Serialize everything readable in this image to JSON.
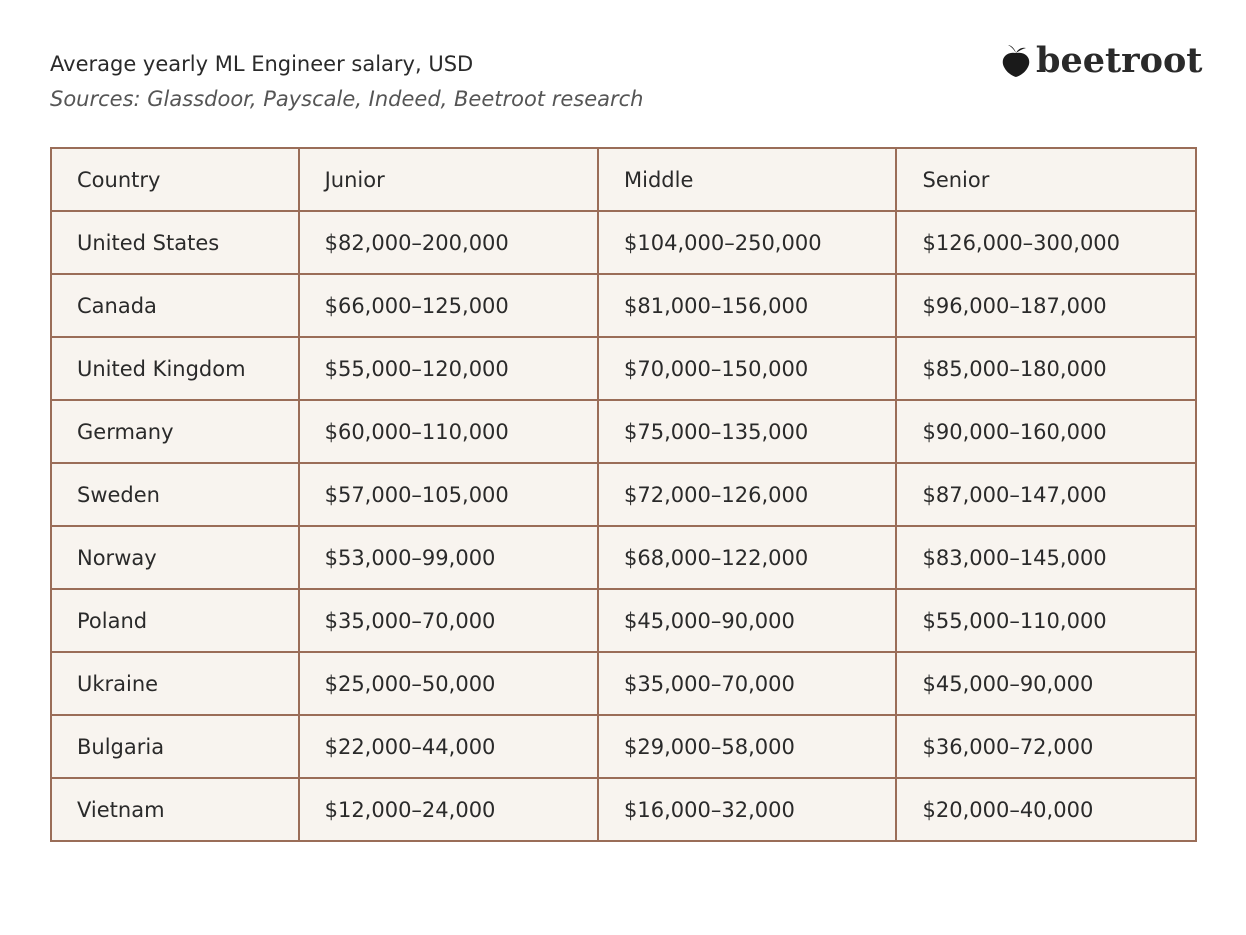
{
  "header": {
    "title": "Average yearly ML Engineer salary, USD",
    "subtitle": "Sources: Glassdoor, Payscale, Indeed, Beetroot research",
    "logo": "beetroot"
  },
  "table": {
    "columns": [
      "Country",
      "Junior",
      "Middle",
      "Senior"
    ],
    "rows": [
      [
        "United States",
        "$82,000–200,000",
        "$104,000–250,000",
        "$126,000–300,000"
      ],
      [
        "Canada",
        "$66,000–125,000",
        "$81,000–156,000",
        "$96,000–187,000"
      ],
      [
        "United Kingdom",
        "$55,000–120,000",
        "$70,000–150,000",
        "$85,000–180,000"
      ],
      [
        "Germany",
        "$60,000–110,000",
        "$75,000–135,000",
        "$90,000–160,000"
      ],
      [
        "Sweden",
        "$57,000–105,000",
        "$72,000–126,000",
        "$87,000–147,000"
      ],
      [
        "Norway",
        "$53,000–99,000",
        "$68,000–122,000",
        "$83,000–145,000"
      ],
      [
        "Poland",
        "$35,000–70,000",
        "$45,000–90,000",
        "$55,000–110,000"
      ],
      [
        "Ukraine",
        "$25,000–50,000",
        "$35,000–70,000",
        "$45,000–90,000"
      ],
      [
        "Bulgaria",
        "$22,000–44,000",
        "$29,000–58,000",
        "$36,000–72,000"
      ],
      [
        "Vietnam",
        "$12,000–24,000",
        "$16,000–32,000",
        "$20,000–40,000"
      ]
    ]
  }
}
